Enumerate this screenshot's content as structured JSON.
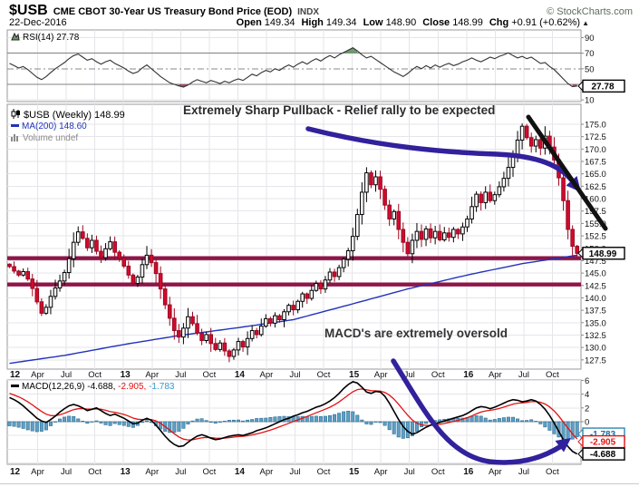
{
  "header": {
    "symbol": "$USB",
    "title": "CME CBOT 30-Year US Treasury Bond Price (EOD)",
    "exchange": "INDX",
    "copyright": "© StockCharts.com",
    "date": "22-Dec-2016",
    "quote": {
      "open_label": "Open",
      "open": "149.34",
      "high_label": "High",
      "high": "149.34",
      "low_label": "Low",
      "low": "148.90",
      "close_label": "Close",
      "close": "148.99",
      "chg_label": "Chg",
      "chg": "+0.91 (+0.62%)",
      "arrow": "▲"
    }
  },
  "rsi_panel": {
    "legend": "RSI(14) 27.78",
    "value_box": "27.78",
    "ticks": [
      "90",
      "70",
      "50",
      "10"
    ]
  },
  "price_panel": {
    "legend_main": "$USB (Weekly) 148.99",
    "legend_ma": "MA(200) 148.60",
    "legend_volume": "Volume undef",
    "value_box": "148.99",
    "annotation_pullback": "Extremely Sharp Pullback - Relief rally to be expected",
    "annotation_oversold": "MACD's are extremely oversold",
    "ticks": [
      "175.0",
      "172.5",
      "170.0",
      "167.5",
      "165.0",
      "162.5",
      "160.0",
      "157.5",
      "155.0",
      "152.5",
      "150.0",
      "147.5",
      "145.0",
      "142.5",
      "140.0",
      "137.5",
      "135.0",
      "132.5",
      "130.0",
      "127.5"
    ]
  },
  "macd_panel": {
    "legend_name": "MACD(12,26,9)",
    "legend_macd": "-4.688,",
    "legend_signal": "-2.905,",
    "legend_hist": "-1.783",
    "ticks": [
      "6",
      "4",
      "2",
      "0"
    ],
    "box_hist": "-1.783",
    "box_signal": "-2.905",
    "box_macd": "-4.688"
  },
  "x_axis": {
    "labels": [
      "12",
      "Apr",
      "Jul",
      "Oct",
      "13",
      "Apr",
      "Jul",
      "Oct",
      "14",
      "Apr",
      "Jul",
      "Oct",
      "15",
      "Apr",
      "Jul",
      "Oct",
      "16",
      "Apr",
      "Jul",
      "Oct"
    ],
    "bold_indices": [
      0,
      4,
      8,
      12,
      16
    ]
  },
  "colors": {
    "annotation_navy": "#31219c",
    "support_maroon": "#8e1648",
    "candle_down": "#d20a2e",
    "candle_down_stroke": "#9a0720",
    "candle_up_stroke": "#000000",
    "ma_blue": "#2233bb",
    "rsi_line": "#333333",
    "rsi_overbought_green": "#6f9970",
    "rsi_oversold_red": "#a04f5f",
    "macd_line": "#000000",
    "macd_signal_red": "#e31212",
    "macd_hist_fill": "#5e9fc4",
    "macd_hist_stroke": "#2f6e94",
    "hist_text_blue": "#3399cc",
    "grid": "#e5e5ea",
    "panel_border": "#999999",
    "trendline_black": "#111111"
  },
  "chart_data": {
    "type": "candlestick",
    "title": "$USB CME CBOT 30-Year US Treasury Bond Price (EOD), Weekly, 2012-2016",
    "x_quarter_labels": [
      "12",
      "Apr",
      "Jul",
      "Oct",
      "13",
      "Apr",
      "Jul",
      "Oct",
      "14",
      "Apr",
      "Jul",
      "Oct",
      "15",
      "Apr",
      "Jul",
      "Oct",
      "16",
      "Apr",
      "Jul",
      "Oct"
    ],
    "price": {
      "ylim": [
        127.5,
        176.5
      ],
      "last_close": 148.99,
      "ma200_last": 148.6,
      "support_lines": [
        148.0,
        142.7
      ],
      "close": [
        146.3,
        145.4,
        144.6,
        145.3,
        143.8,
        141.9,
        139.2,
        136.9,
        138.1,
        140.3,
        142.0,
        143.4,
        145.1,
        147.9,
        151.2,
        153.3,
        152.0,
        150.1,
        151.6,
        149.4,
        148.1,
        149.9,
        151.3,
        149.2,
        148.0,
        146.4,
        144.6,
        142.9,
        144.2,
        146.7,
        148.6,
        147.1,
        144.9,
        141.8,
        138.6,
        135.9,
        133.4,
        132.1,
        133.9,
        136.2,
        134.8,
        132.9,
        131.4,
        132.6,
        130.8,
        129.6,
        130.9,
        129.3,
        128.2,
        129.5,
        131.2,
        130.1,
        131.8,
        133.4,
        132.6,
        134.3,
        135.8,
        134.9,
        136.4,
        135.6,
        137.2,
        138.5,
        137.6,
        139.3,
        140.8,
        139.9,
        141.5,
        142.9,
        141.8,
        143.6,
        145.2,
        144.3,
        146.1,
        147.8,
        149.5,
        152.4,
        156.8,
        161.3,
        165.2,
        162.8,
        164.4,
        161.9,
        158.7,
        155.9,
        157.4,
        153.8,
        151.2,
        148.9,
        151.6,
        153.4,
        151.8,
        153.9,
        152.1,
        153.4,
        151.7,
        153.1,
        152.2,
        153.8,
        152.9,
        154.3,
        155.9,
        158.4,
        160.9,
        159.2,
        161.3,
        159.6,
        160.8,
        162.4,
        164.1,
        166.3,
        168.9,
        171.8,
        174.6,
        172.3,
        170.6,
        171.9,
        170.2,
        172.6,
        170.4,
        167.8,
        164.2,
        159.6,
        153.8,
        150.4,
        148.99
      ],
      "ma200_anchors": [
        [
          0,
          126.8
        ],
        [
          12,
          128.4
        ],
        [
          25,
          130.6
        ],
        [
          37,
          132.4
        ],
        [
          50,
          134.0
        ],
        [
          62,
          135.6
        ],
        [
          75,
          138.8
        ],
        [
          87,
          141.8
        ],
        [
          100,
          144.6
        ],
        [
          112,
          146.9
        ],
        [
          124,
          148.6
        ]
      ]
    },
    "rsi": {
      "period": 14,
      "last": 27.78,
      "overbought": 70,
      "oversold": 30,
      "values": [
        57,
        54,
        51,
        53,
        49,
        44,
        39,
        36,
        40,
        45,
        50,
        54,
        58,
        63,
        67,
        69,
        65,
        61,
        63,
        59,
        56,
        59,
        61,
        57,
        54,
        51,
        47,
        44,
        46,
        51,
        55,
        50,
        45,
        40,
        36,
        32,
        30,
        28,
        26.5,
        29,
        33,
        36,
        34,
        32,
        35,
        33,
        31,
        34,
        32,
        35,
        37,
        35,
        39,
        43,
        41,
        45,
        48,
        46,
        50,
        48,
        52,
        55,
        52,
        56,
        59,
        56,
        60,
        63,
        60,
        64,
        67,
        64,
        68,
        71,
        74,
        77,
        73,
        68,
        64,
        66,
        62,
        58,
        54,
        50,
        46,
        43,
        40,
        44,
        49,
        53,
        50,
        54,
        51,
        55,
        52,
        55,
        57,
        54,
        56,
        59,
        61,
        64,
        61,
        59,
        62,
        65,
        63,
        66,
        68,
        70.5,
        67,
        64,
        66,
        63,
        65,
        61,
        57,
        58,
        53,
        49,
        43,
        37,
        31,
        27,
        27.78
      ]
    },
    "macd": {
      "params": "12,26,9",
      "last_macd": -4.688,
      "last_signal": -2.905,
      "last_hist": -1.783,
      "signal_alpha": 0.25,
      "signal_seed_offset": 0.8,
      "values": [
        3.5,
        3.2,
        2.8,
        2.3,
        1.7,
        1.1,
        0.5,
        0.1,
        -0.1,
        0.3,
        0.8,
        1.4,
        1.9,
        2.3,
        2.5,
        2.3,
        2.0,
        1.6,
        1.8,
        2.0,
        1.6,
        1.2,
        0.9,
        1.1,
        0.8,
        0.5,
        0.1,
        -0.3,
        -0.2,
        0.2,
        0.5,
        0.2,
        -0.5,
        -1.3,
        -2.1,
        -2.8,
        -3.3,
        -3.6,
        -3.5,
        -3.0,
        -2.5,
        -2.1,
        -1.9,
        -2.1,
        -2.4,
        -2.6,
        -2.5,
        -2.3,
        -2.1,
        -2.0,
        -1.9,
        -2.0,
        -1.8,
        -1.6,
        -1.3,
        -1.1,
        -0.9,
        -0.6,
        -0.3,
        0.0,
        0.3,
        0.5,
        0.8,
        1.0,
        1.3,
        1.5,
        1.8,
        2.1,
        2.3,
        2.6,
        3.0,
        3.5,
        4.1,
        4.8,
        5.4,
        5.8,
        5.6,
        5.0,
        4.3,
        4.1,
        4.4,
        4.3,
        3.7,
        2.7,
        1.5,
        0.3,
        -0.7,
        -1.4,
        -1.8,
        -1.6,
        -1.2,
        -0.8,
        -0.5,
        -0.3,
        -0.1,
        0.1,
        0.3,
        0.5,
        0.7,
        0.9,
        1.2,
        1.6,
        2.0,
        2.2,
        2.1,
        1.9,
        2.1,
        2.4,
        2.7,
        3.0,
        3.2,
        3.1,
        2.9,
        3.0,
        3.2,
        3.0,
        2.5,
        1.8,
        0.9,
        -0.2,
        -1.4,
        -2.6,
        -3.6,
        -4.3,
        -4.688
      ]
    }
  }
}
